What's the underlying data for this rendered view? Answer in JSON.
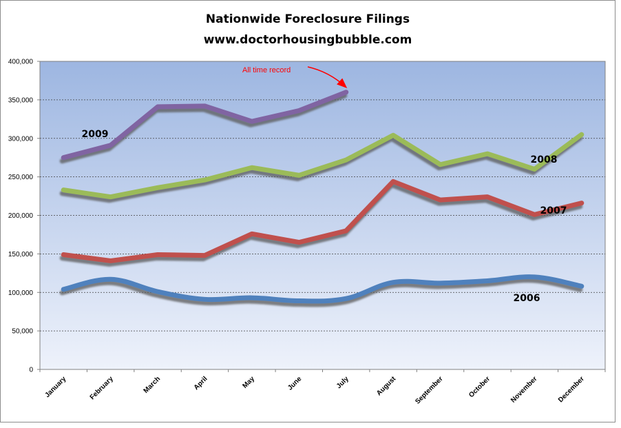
{
  "chart_data": {
    "type": "line",
    "title": "Nationwide Foreclosure Filings",
    "subtitle": "www.doctorhousingbubble.com",
    "categories": [
      "January",
      "February",
      "March",
      "April",
      "May",
      "June",
      "July",
      "August",
      "September",
      "October",
      "November",
      "December"
    ],
    "yticks": [
      "0",
      "50,000",
      "100,000",
      "150,000",
      "200,000",
      "250,000",
      "300,000",
      "350,000",
      "400,000"
    ],
    "ylim": [
      0,
      400000
    ],
    "grid": true,
    "background_gradient": [
      "#9db6e1",
      "#eef2fb"
    ],
    "series": [
      {
        "name": "2009",
        "color": "#8064a2",
        "values": [
          275000,
          291000,
          341000,
          342000,
          322000,
          336000,
          360000,
          null,
          null,
          null,
          null,
          null
        ]
      },
      {
        "name": "2008",
        "color": "#9bbb59",
        "values": [
          233000,
          224000,
          236000,
          246000,
          262000,
          252000,
          272000,
          304000,
          266000,
          280000,
          260000,
          305000
        ]
      },
      {
        "name": "2007",
        "color": "#c0504d",
        "values": [
          149000,
          141000,
          149000,
          148000,
          176000,
          165000,
          180000,
          244000,
          220000,
          224000,
          201000,
          216000
        ]
      },
      {
        "name": "2006",
        "color": "#4f81bd",
        "values": [
          104000,
          117000,
          101000,
          91000,
          93000,
          89000,
          92000,
          113000,
          112000,
          115000,
          120000,
          108000
        ]
      }
    ],
    "annotation": {
      "text": "All time record",
      "color": "#ff0000"
    }
  }
}
